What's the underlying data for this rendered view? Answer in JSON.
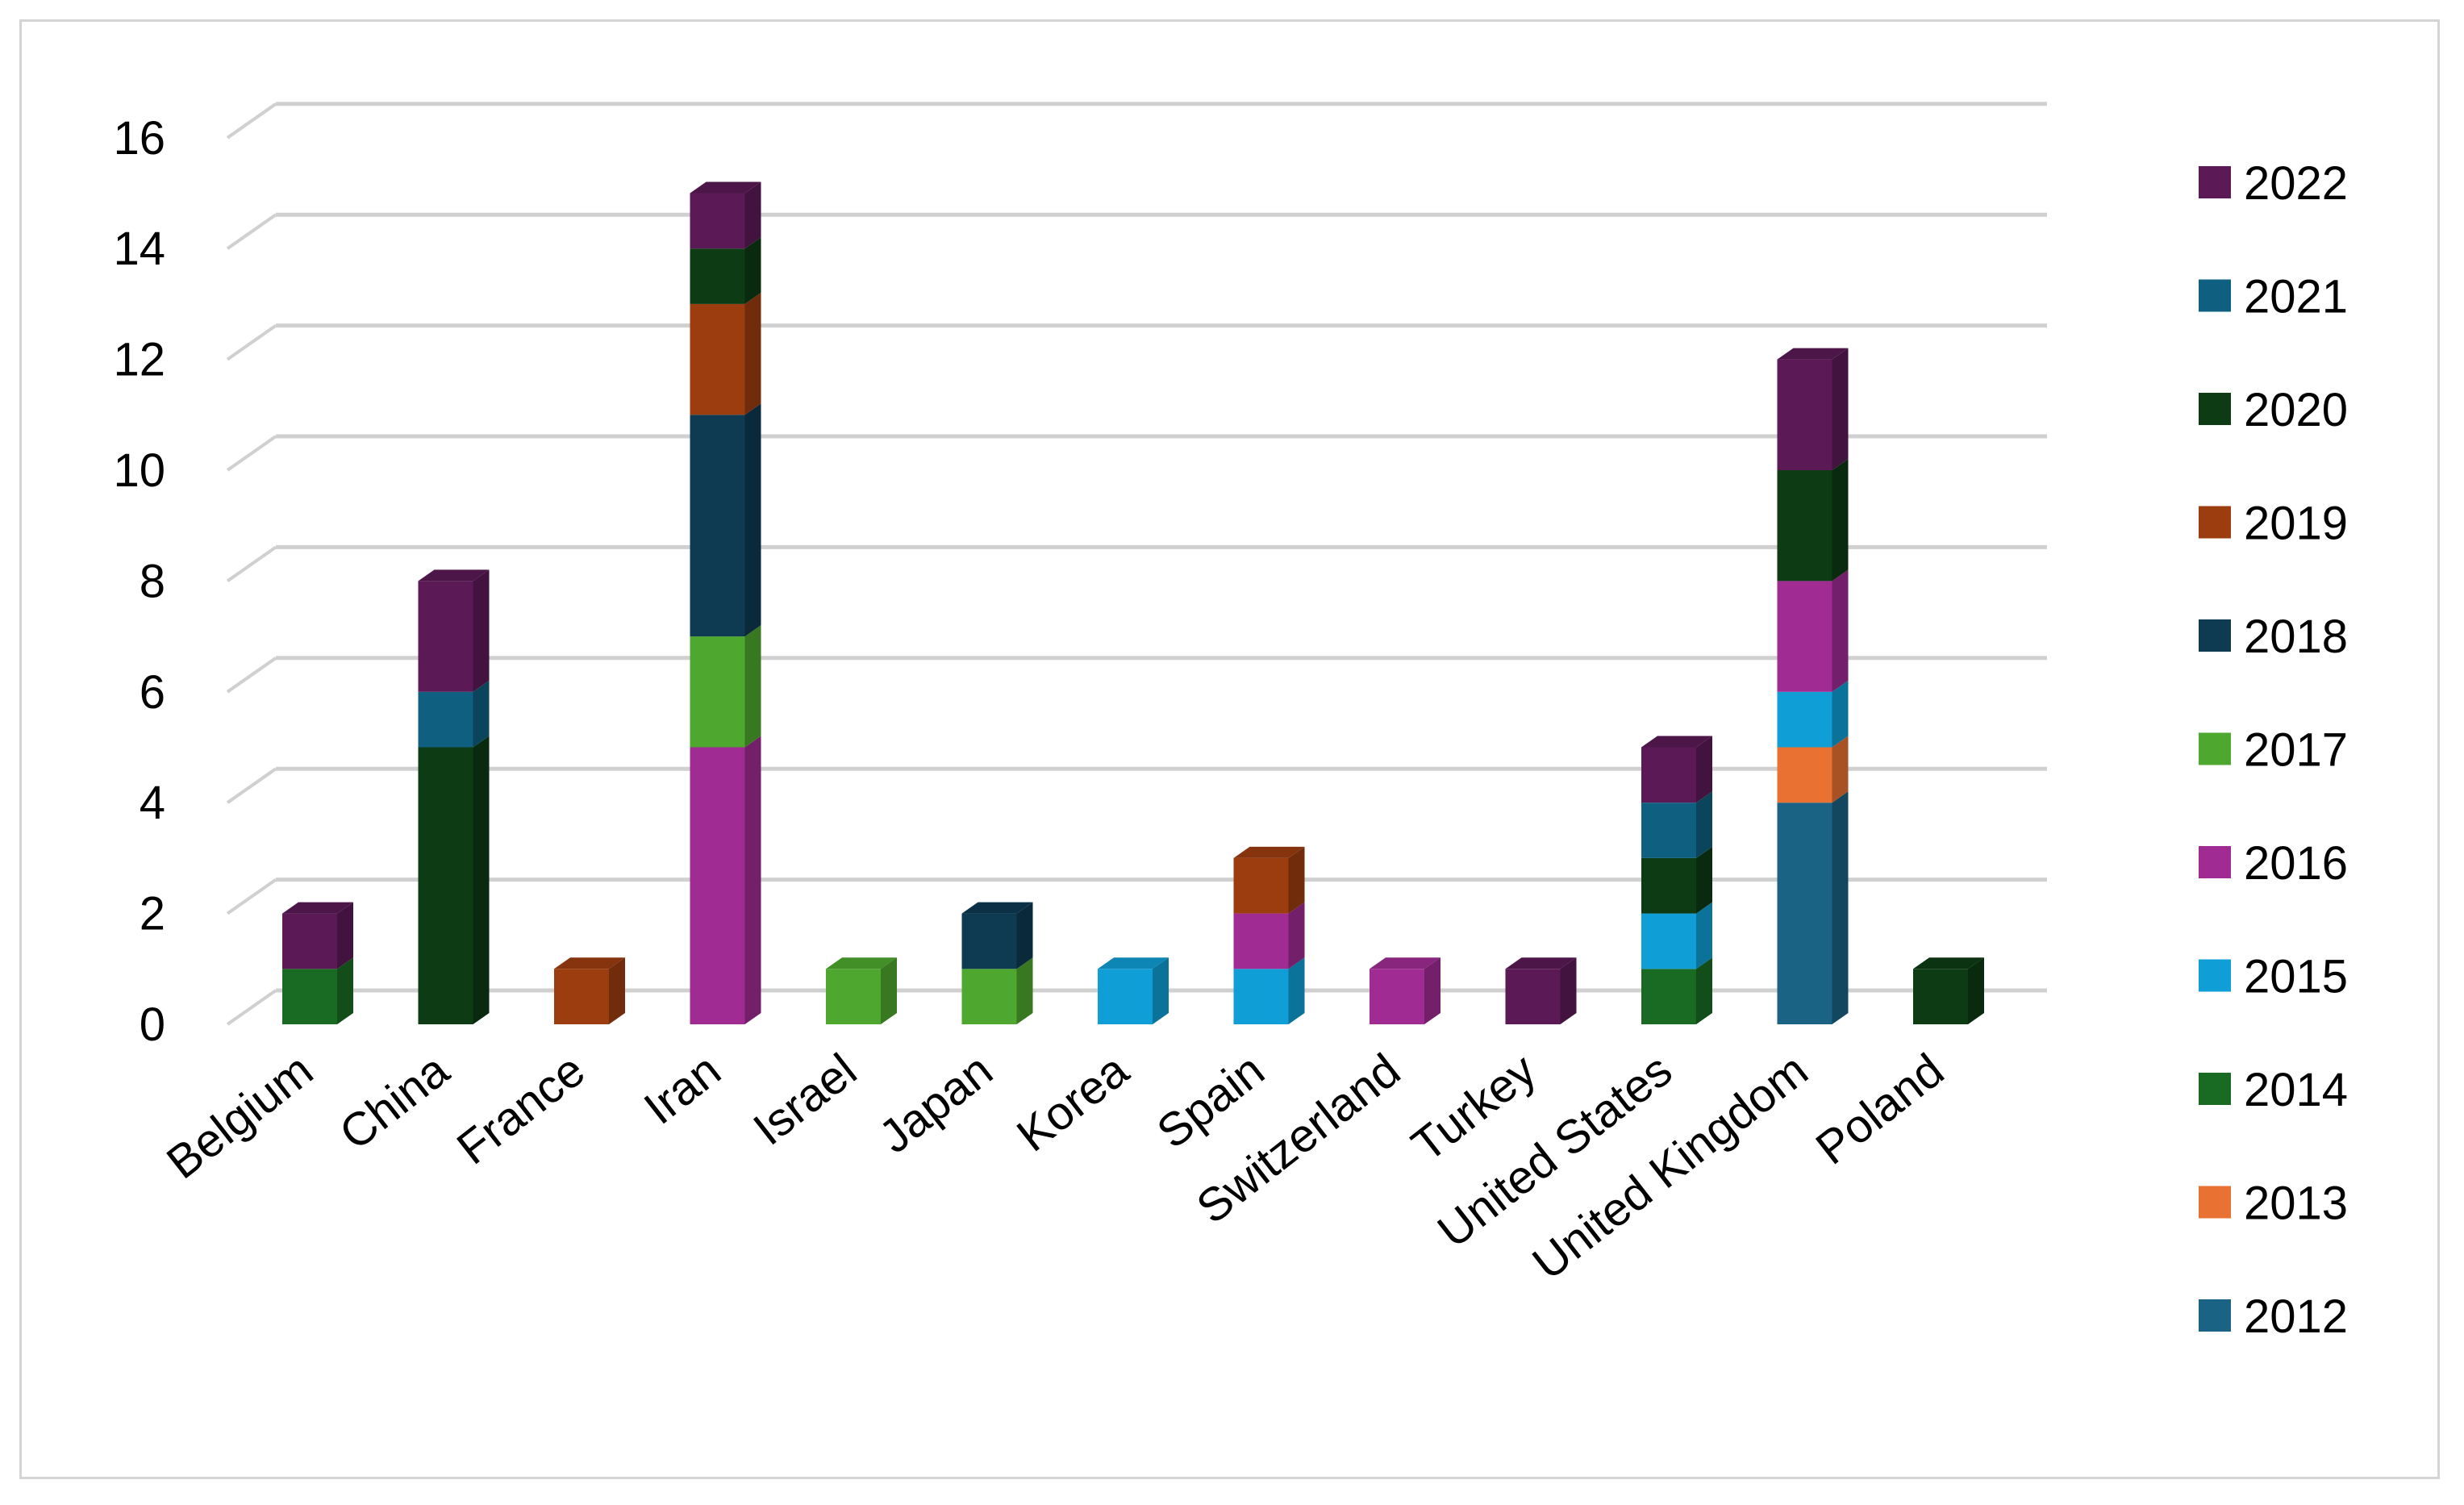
{
  "chart_data": {
    "type": "bar",
    "stacked": true,
    "style": "3d-column",
    "title": "",
    "xlabel": "",
    "ylabel": "",
    "ylim": [
      0,
      16
    ],
    "y_ticks": [
      "0",
      "2",
      "4",
      "6",
      "8",
      "10",
      "12",
      "14",
      "16"
    ],
    "grid": true,
    "legend_position": "right",
    "categories": [
      "Belgium",
      "China",
      "France",
      "Iran",
      "Israel",
      "Japan",
      "Korea",
      "Spain",
      "Switzerland",
      "Turkey",
      "United States",
      "United Kingdom",
      "Poland"
    ],
    "series": [
      {
        "name": "2012",
        "color": "#1a6384",
        "values": [
          0,
          0,
          0,
          0,
          0,
          0,
          0,
          0,
          0,
          0,
          0,
          4,
          0
        ]
      },
      {
        "name": "2013",
        "color": "#e97132",
        "values": [
          0,
          0,
          0,
          0,
          0,
          0,
          0,
          0,
          0,
          0,
          0,
          1,
          0
        ]
      },
      {
        "name": "2014",
        "color": "#196b24",
        "values": [
          1,
          0,
          0,
          0,
          0,
          0,
          0,
          0,
          0,
          0,
          1,
          0,
          0
        ]
      },
      {
        "name": "2015",
        "color": "#0f9ed5",
        "values": [
          0,
          0,
          0,
          0,
          0,
          0,
          1,
          1,
          0,
          0,
          1,
          1,
          0
        ]
      },
      {
        "name": "2016",
        "color": "#a02b93",
        "values": [
          0,
          0,
          0,
          5,
          0,
          0,
          0,
          1,
          1,
          0,
          0,
          2,
          0
        ]
      },
      {
        "name": "2017",
        "color": "#4ea72e",
        "values": [
          0,
          0,
          0,
          2,
          1,
          1,
          0,
          0,
          0,
          0,
          0,
          0,
          0
        ]
      },
      {
        "name": "2018",
        "color": "#0e3a52",
        "values": [
          0,
          0,
          0,
          4,
          0,
          1,
          0,
          0,
          0,
          0,
          0,
          0,
          0
        ]
      },
      {
        "name": "2019",
        "color": "#9c3d0f",
        "values": [
          0,
          0,
          1,
          2,
          0,
          0,
          0,
          1,
          0,
          0,
          0,
          0,
          0
        ]
      },
      {
        "name": "2020",
        "color": "#0d3b14",
        "values": [
          0,
          5,
          0,
          1,
          0,
          0,
          0,
          0,
          0,
          0,
          1,
          2,
          1
        ]
      },
      {
        "name": "2021",
        "color": "#0f6080",
        "values": [
          0,
          1,
          0,
          0,
          0,
          0,
          0,
          0,
          0,
          0,
          1,
          0,
          0
        ]
      },
      {
        "name": "2022",
        "color": "#5b1a56",
        "values": [
          1,
          2,
          0,
          1,
          0,
          0,
          0,
          0,
          0,
          1,
          1,
          2,
          0
        ]
      }
    ],
    "legend_order": [
      "2022",
      "2021",
      "2020",
      "2019",
      "2018",
      "2017",
      "2016",
      "2015",
      "2014",
      "2013",
      "2012"
    ]
  }
}
